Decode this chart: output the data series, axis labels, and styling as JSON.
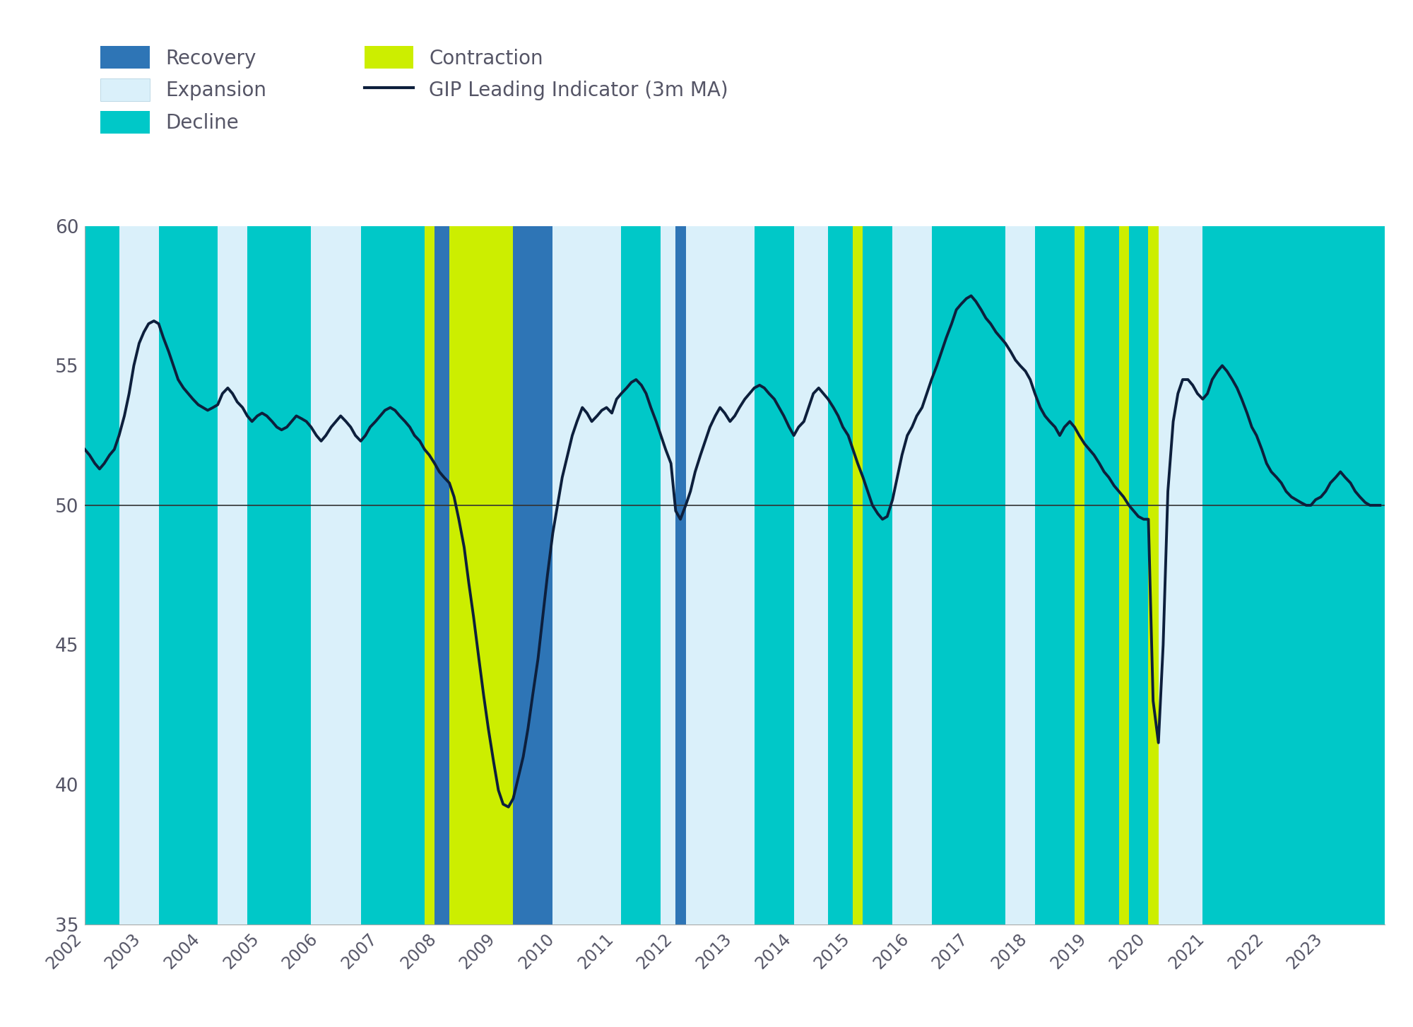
{
  "background_color": "#FFFFFF",
  "plot_bg_color": "#FFFFFF",
  "ylim": [
    35,
    60
  ],
  "xlim_start": 2002.0,
  "xlim_end": 2024.0,
  "hline_y": 50,
  "hline_color": "#333333",
  "line_color": "#0d1f3c",
  "line_width": 2.8,
  "colors": {
    "Recovery": "#2E75B6",
    "Expansion": "#DAF0FA",
    "Decline": "#00C8C8",
    "Contraction": "#CCEE00"
  },
  "legend_text_color": "#4a5568",
  "yticks": [
    35,
    40,
    45,
    50,
    55,
    60
  ],
  "xtick_years": [
    2002,
    2003,
    2004,
    2005,
    2006,
    2007,
    2008,
    2009,
    2010,
    2011,
    2012,
    2013,
    2014,
    2015,
    2016,
    2017,
    2018,
    2019,
    2020,
    2021,
    2022,
    2023
  ],
  "regimes": [
    {
      "start": 2002.0,
      "end": 2002.58,
      "type": "Decline"
    },
    {
      "start": 2002.58,
      "end": 2003.25,
      "type": "Expansion"
    },
    {
      "start": 2003.25,
      "end": 2004.25,
      "type": "Decline"
    },
    {
      "start": 2004.25,
      "end": 2004.75,
      "type": "Expansion"
    },
    {
      "start": 2004.75,
      "end": 2005.83,
      "type": "Decline"
    },
    {
      "start": 2005.83,
      "end": 2006.67,
      "type": "Expansion"
    },
    {
      "start": 2006.67,
      "end": 2007.75,
      "type": "Decline"
    },
    {
      "start": 2007.75,
      "end": 2007.92,
      "type": "Contraction"
    },
    {
      "start": 2007.92,
      "end": 2008.17,
      "type": "Recovery"
    },
    {
      "start": 2008.17,
      "end": 2009.25,
      "type": "Contraction"
    },
    {
      "start": 2009.25,
      "end": 2009.92,
      "type": "Recovery"
    },
    {
      "start": 2009.92,
      "end": 2011.08,
      "type": "Expansion"
    },
    {
      "start": 2011.08,
      "end": 2011.75,
      "type": "Decline"
    },
    {
      "start": 2011.75,
      "end": 2012.0,
      "type": "Expansion"
    },
    {
      "start": 2012.0,
      "end": 2012.17,
      "type": "Recovery"
    },
    {
      "start": 2012.17,
      "end": 2013.33,
      "type": "Expansion"
    },
    {
      "start": 2013.33,
      "end": 2014.0,
      "type": "Decline"
    },
    {
      "start": 2014.0,
      "end": 2014.58,
      "type": "Expansion"
    },
    {
      "start": 2014.58,
      "end": 2015.0,
      "type": "Decline"
    },
    {
      "start": 2015.0,
      "end": 2015.17,
      "type": "Contraction"
    },
    {
      "start": 2015.17,
      "end": 2015.67,
      "type": "Decline"
    },
    {
      "start": 2015.67,
      "end": 2016.33,
      "type": "Expansion"
    },
    {
      "start": 2016.33,
      "end": 2017.58,
      "type": "Decline"
    },
    {
      "start": 2017.58,
      "end": 2018.08,
      "type": "Expansion"
    },
    {
      "start": 2018.08,
      "end": 2018.75,
      "type": "Decline"
    },
    {
      "start": 2018.75,
      "end": 2018.92,
      "type": "Contraction"
    },
    {
      "start": 2018.92,
      "end": 2019.5,
      "type": "Decline"
    },
    {
      "start": 2019.5,
      "end": 2019.67,
      "type": "Contraction"
    },
    {
      "start": 2019.67,
      "end": 2020.0,
      "type": "Decline"
    },
    {
      "start": 2020.0,
      "end": 2020.17,
      "type": "Contraction"
    },
    {
      "start": 2020.17,
      "end": 2020.92,
      "type": "Expansion"
    },
    {
      "start": 2020.92,
      "end": 2024.0,
      "type": "Decline"
    }
  ],
  "gip_dates": [
    2002.0,
    2002.08,
    2002.17,
    2002.25,
    2002.33,
    2002.42,
    2002.5,
    2002.58,
    2002.67,
    2002.75,
    2002.83,
    2002.92,
    2003.0,
    2003.08,
    2003.17,
    2003.25,
    2003.33,
    2003.42,
    2003.5,
    2003.58,
    2003.67,
    2003.75,
    2003.83,
    2003.92,
    2004.0,
    2004.08,
    2004.17,
    2004.25,
    2004.33,
    2004.42,
    2004.5,
    2004.58,
    2004.67,
    2004.75,
    2004.83,
    2004.92,
    2005.0,
    2005.08,
    2005.17,
    2005.25,
    2005.33,
    2005.42,
    2005.5,
    2005.58,
    2005.67,
    2005.75,
    2005.83,
    2005.92,
    2006.0,
    2006.08,
    2006.17,
    2006.25,
    2006.33,
    2006.42,
    2006.5,
    2006.58,
    2006.67,
    2006.75,
    2006.83,
    2006.92,
    2007.0,
    2007.08,
    2007.17,
    2007.25,
    2007.33,
    2007.42,
    2007.5,
    2007.58,
    2007.67,
    2007.75,
    2007.83,
    2007.92,
    2008.0,
    2008.08,
    2008.17,
    2008.25,
    2008.33,
    2008.42,
    2008.5,
    2008.58,
    2008.67,
    2008.75,
    2008.83,
    2008.92,
    2009.0,
    2009.08,
    2009.17,
    2009.25,
    2009.33,
    2009.42,
    2009.5,
    2009.58,
    2009.67,
    2009.75,
    2009.83,
    2009.92,
    2010.0,
    2010.08,
    2010.17,
    2010.25,
    2010.33,
    2010.42,
    2010.5,
    2010.58,
    2010.67,
    2010.75,
    2010.83,
    2010.92,
    2011.0,
    2011.08,
    2011.17,
    2011.25,
    2011.33,
    2011.42,
    2011.5,
    2011.58,
    2011.67,
    2011.75,
    2011.83,
    2011.92,
    2012.0,
    2012.08,
    2012.17,
    2012.25,
    2012.33,
    2012.42,
    2012.5,
    2012.58,
    2012.67,
    2012.75,
    2012.83,
    2012.92,
    2013.0,
    2013.08,
    2013.17,
    2013.25,
    2013.33,
    2013.42,
    2013.5,
    2013.58,
    2013.67,
    2013.75,
    2013.83,
    2013.92,
    2014.0,
    2014.08,
    2014.17,
    2014.25,
    2014.33,
    2014.42,
    2014.5,
    2014.58,
    2014.67,
    2014.75,
    2014.83,
    2014.92,
    2015.0,
    2015.08,
    2015.17,
    2015.25,
    2015.33,
    2015.42,
    2015.5,
    2015.58,
    2015.67,
    2015.75,
    2015.83,
    2015.92,
    2016.0,
    2016.08,
    2016.17,
    2016.25,
    2016.33,
    2016.42,
    2016.5,
    2016.58,
    2016.67,
    2016.75,
    2016.83,
    2016.92,
    2017.0,
    2017.08,
    2017.17,
    2017.25,
    2017.33,
    2017.42,
    2017.5,
    2017.58,
    2017.67,
    2017.75,
    2017.83,
    2017.92,
    2018.0,
    2018.08,
    2018.17,
    2018.25,
    2018.33,
    2018.42,
    2018.5,
    2018.58,
    2018.67,
    2018.75,
    2018.83,
    2018.92,
    2019.0,
    2019.08,
    2019.17,
    2019.25,
    2019.33,
    2019.42,
    2019.5,
    2019.58,
    2019.67,
    2019.75,
    2019.83,
    2019.92,
    2020.0,
    2020.08,
    2020.17,
    2020.25,
    2020.33,
    2020.42,
    2020.5,
    2020.58,
    2020.67,
    2020.75,
    2020.83,
    2020.92,
    2021.0,
    2021.08,
    2021.17,
    2021.25,
    2021.33,
    2021.42,
    2021.5,
    2021.58,
    2021.67,
    2021.75,
    2021.83,
    2021.92,
    2022.0,
    2022.08,
    2022.17,
    2022.25,
    2022.33,
    2022.42,
    2022.5,
    2022.58,
    2022.67,
    2022.75,
    2022.83,
    2022.92,
    2023.0,
    2023.08,
    2023.17,
    2023.25,
    2023.33,
    2023.42,
    2023.5,
    2023.58,
    2023.67,
    2023.75,
    2023.83,
    2023.92
  ],
  "gip_values": [
    52.0,
    51.8,
    51.5,
    51.3,
    51.5,
    51.8,
    52.0,
    52.5,
    53.2,
    54.0,
    55.0,
    55.8,
    56.2,
    56.5,
    56.6,
    56.5,
    56.0,
    55.5,
    55.0,
    54.5,
    54.2,
    54.0,
    53.8,
    53.6,
    53.5,
    53.4,
    53.5,
    53.6,
    54.0,
    54.2,
    54.0,
    53.7,
    53.5,
    53.2,
    53.0,
    53.2,
    53.3,
    53.2,
    53.0,
    52.8,
    52.7,
    52.8,
    53.0,
    53.2,
    53.1,
    53.0,
    52.8,
    52.5,
    52.3,
    52.5,
    52.8,
    53.0,
    53.2,
    53.0,
    52.8,
    52.5,
    52.3,
    52.5,
    52.8,
    53.0,
    53.2,
    53.4,
    53.5,
    53.4,
    53.2,
    53.0,
    52.8,
    52.5,
    52.3,
    52.0,
    51.8,
    51.5,
    51.2,
    51.0,
    50.8,
    50.3,
    49.5,
    48.5,
    47.2,
    46.0,
    44.5,
    43.2,
    42.0,
    40.8,
    39.8,
    39.3,
    39.2,
    39.5,
    40.2,
    41.0,
    42.0,
    43.2,
    44.5,
    46.0,
    47.5,
    49.0,
    50.0,
    51.0,
    51.8,
    52.5,
    53.0,
    53.5,
    53.3,
    53.0,
    53.2,
    53.4,
    53.5,
    53.3,
    53.8,
    54.0,
    54.2,
    54.4,
    54.5,
    54.3,
    54.0,
    53.5,
    53.0,
    52.5,
    52.0,
    51.5,
    49.8,
    49.5,
    50.0,
    50.5,
    51.2,
    51.8,
    52.3,
    52.8,
    53.2,
    53.5,
    53.3,
    53.0,
    53.2,
    53.5,
    53.8,
    54.0,
    54.2,
    54.3,
    54.2,
    54.0,
    53.8,
    53.5,
    53.2,
    52.8,
    52.5,
    52.8,
    53.0,
    53.5,
    54.0,
    54.2,
    54.0,
    53.8,
    53.5,
    53.2,
    52.8,
    52.5,
    52.0,
    51.5,
    51.0,
    50.5,
    50.0,
    49.7,
    49.5,
    49.6,
    50.2,
    51.0,
    51.8,
    52.5,
    52.8,
    53.2,
    53.5,
    54.0,
    54.5,
    55.0,
    55.5,
    56.0,
    56.5,
    57.0,
    57.2,
    57.4,
    57.5,
    57.3,
    57.0,
    56.7,
    56.5,
    56.2,
    56.0,
    55.8,
    55.5,
    55.2,
    55.0,
    54.8,
    54.5,
    54.0,
    53.5,
    53.2,
    53.0,
    52.8,
    52.5,
    52.8,
    53.0,
    52.8,
    52.5,
    52.2,
    52.0,
    51.8,
    51.5,
    51.2,
    51.0,
    50.7,
    50.5,
    50.3,
    50.0,
    49.8,
    49.6,
    49.5,
    49.5,
    43.0,
    41.5,
    45.0,
    50.5,
    53.0,
    54.0,
    54.5,
    54.5,
    54.3,
    54.0,
    53.8,
    54.0,
    54.5,
    54.8,
    55.0,
    54.8,
    54.5,
    54.2,
    53.8,
    53.3,
    52.8,
    52.5,
    52.0,
    51.5,
    51.2,
    51.0,
    50.8,
    50.5,
    50.3,
    50.2,
    50.1,
    50.0,
    50.0,
    50.2,
    50.3,
    50.5,
    50.8,
    51.0,
    51.2,
    51.0,
    50.8,
    50.5,
    50.3,
    50.1,
    50.0,
    50.0,
    50.0
  ]
}
